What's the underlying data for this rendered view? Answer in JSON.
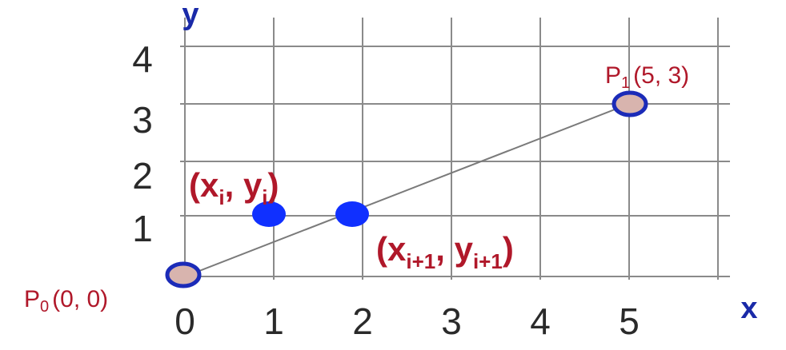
{
  "diagram": {
    "x_axis_label": "x",
    "y_axis_label": "y",
    "x_ticks": [
      "0",
      "1",
      "2",
      "3",
      "4",
      "5"
    ],
    "y_ticks": [
      "1",
      "2",
      "3",
      "4"
    ],
    "colors": {
      "grid": "#8a8a8a",
      "line": "#7a7a7a",
      "endpoint_fill": "#d8b4ae",
      "endpoint_stroke": "#1b2bb8",
      "pixel_fill": "#1030ff",
      "axis_label": "#1a2aa8",
      "point_label": "#b0182a",
      "tick_label": "#2a2a2a"
    },
    "line": {
      "from": [
        0,
        0
      ],
      "to": [
        5,
        3
      ]
    },
    "endpoints": [
      {
        "name": "P",
        "subscript": "0",
        "coords": "(0, 0)",
        "x": 0,
        "y": 0
      },
      {
        "name": "P",
        "subscript": "1",
        "coords": "(5, 3)",
        "x": 5,
        "y": 3
      }
    ],
    "pixels": [
      {
        "x": 1,
        "y": 1,
        "label_base": "x",
        "label_sub": "i",
        "label_base2": "y",
        "label_sub2": "i"
      },
      {
        "x": 2,
        "y": 1,
        "label_base": "x",
        "label_sub": "i+1",
        "label_base2": "y",
        "label_sub2": "i+1"
      }
    ]
  }
}
